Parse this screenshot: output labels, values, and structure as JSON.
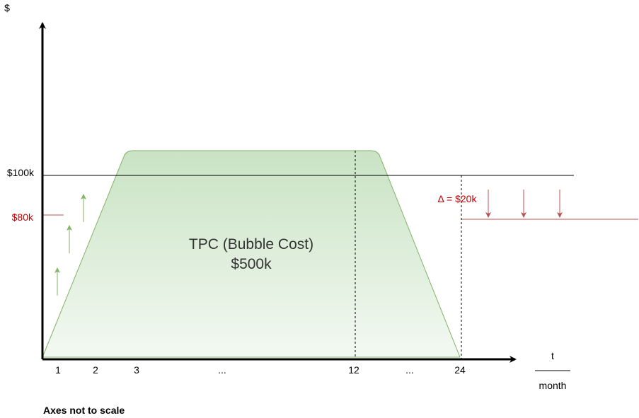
{
  "axes": {
    "y_symbol": "$",
    "x_symbol": "t",
    "x_unit": "month",
    "x_ticks": [
      "1",
      "2",
      "3",
      "...",
      "12",
      "...",
      "24"
    ]
  },
  "levels": {
    "budget": "$100k",
    "reduced": "$80k",
    "delta": "Δ = $20k"
  },
  "shape": {
    "name": "TPC (Bubble Cost)",
    "value": "$500k"
  },
  "note": "Axes not to scale",
  "colors": {
    "shape_fill_top": "#c9e3c4",
    "shape_fill_bottom": "#f3f9f2",
    "shape_stroke": "#82b366",
    "red": "#b85450",
    "green_arrow": "#82b366",
    "red_text": "#c00000"
  }
}
